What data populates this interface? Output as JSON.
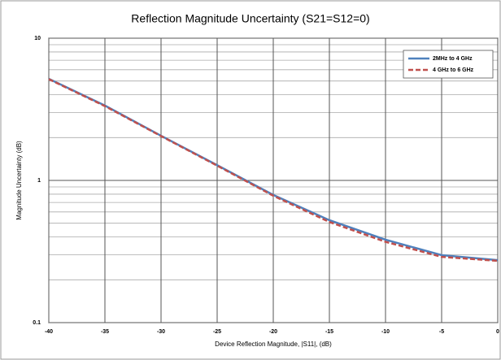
{
  "chart_data": {
    "type": "line",
    "title": "Reflection Magnitude Uncertainty (S21=S12=0)",
    "xlabel": "Device Reflection Magnitude, |S11|, (dB)",
    "ylabel": "Magnitude Uncertainty (dB)",
    "x": [
      -40,
      -35,
      -30,
      -25,
      -20,
      -15,
      -10,
      -5,
      0
    ],
    "series": [
      {
        "name": "2MHz to 4 GHz",
        "color": "#4f81bd",
        "dashed": false,
        "values": [
          5.18,
          3.36,
          2.06,
          1.28,
          0.79,
          0.525,
          0.383,
          0.298,
          0.275
        ]
      },
      {
        "name": "4 GHz to 6 GHz",
        "color": "#c0504d",
        "dashed": true,
        "values": [
          5.15,
          3.33,
          2.05,
          1.27,
          0.78,
          0.51,
          0.37,
          0.29,
          0.272
        ]
      }
    ],
    "xlim": [
      -40,
      0
    ],
    "xticks": [
      -40,
      -35,
      -30,
      -25,
      -20,
      -15,
      -10,
      -5,
      0
    ],
    "ylim": [
      0.1,
      10
    ],
    "yticks": [
      0.1,
      1,
      10
    ],
    "ylog": true,
    "grid": true,
    "minor_grid": true,
    "legend": "upper right"
  }
}
